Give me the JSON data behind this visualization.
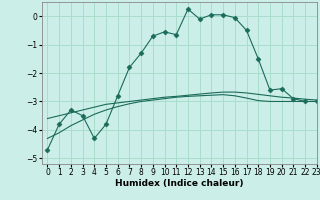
{
  "xlabel": "Humidex (Indice chaleur)",
  "xlim": [
    -0.5,
    23
  ],
  "ylim": [
    -5.2,
    0.5
  ],
  "yticks": [
    0,
    -1,
    -2,
    -3,
    -4,
    -5
  ],
  "xticks": [
    0,
    1,
    2,
    3,
    4,
    5,
    6,
    7,
    8,
    9,
    10,
    11,
    12,
    13,
    14,
    15,
    16,
    17,
    18,
    19,
    20,
    21,
    22,
    23
  ],
  "background_color": "#cceee8",
  "grid_color": "#aaddcc",
  "line_color": "#1a6b5a",
  "line1_x": [
    0,
    1,
    2,
    3,
    4,
    5,
    6,
    7,
    8,
    9,
    10,
    11,
    12,
    13,
    14,
    15,
    16,
    17,
    18,
    19,
    20,
    21,
    22,
    23
  ],
  "line1_y": [
    -4.7,
    -3.8,
    -3.3,
    -3.5,
    -4.3,
    -3.8,
    -2.8,
    -1.8,
    -1.3,
    -0.7,
    -0.55,
    -0.65,
    0.25,
    -0.1,
    0.05,
    0.05,
    -0.05,
    -0.5,
    -1.5,
    -2.6,
    -2.55,
    -2.9,
    -3.0,
    -3.0
  ],
  "line2_x": [
    0,
    1,
    2,
    3,
    4,
    5,
    6,
    7,
    8,
    9,
    10,
    11,
    12,
    13,
    14,
    15,
    16,
    17,
    18,
    19,
    20,
    21,
    22,
    23
  ],
  "line2_y": [
    -3.6,
    -3.5,
    -3.4,
    -3.3,
    -3.2,
    -3.1,
    -3.05,
    -3.0,
    -2.95,
    -2.9,
    -2.85,
    -2.82,
    -2.78,
    -2.74,
    -2.7,
    -2.67,
    -2.67,
    -2.7,
    -2.75,
    -2.8,
    -2.85,
    -2.88,
    -2.92,
    -2.95
  ],
  "line3_x": [
    0,
    1,
    2,
    3,
    4,
    5,
    6,
    7,
    8,
    9,
    10,
    11,
    12,
    13,
    14,
    15,
    16,
    17,
    18,
    19,
    20,
    21,
    22,
    23
  ],
  "line3_y": [
    -4.3,
    -4.1,
    -3.85,
    -3.65,
    -3.45,
    -3.3,
    -3.18,
    -3.08,
    -3.0,
    -2.95,
    -2.9,
    -2.85,
    -2.82,
    -2.8,
    -2.78,
    -2.76,
    -2.8,
    -2.88,
    -2.97,
    -3.0,
    -3.0,
    -3.0,
    -3.0,
    -3.0
  ]
}
